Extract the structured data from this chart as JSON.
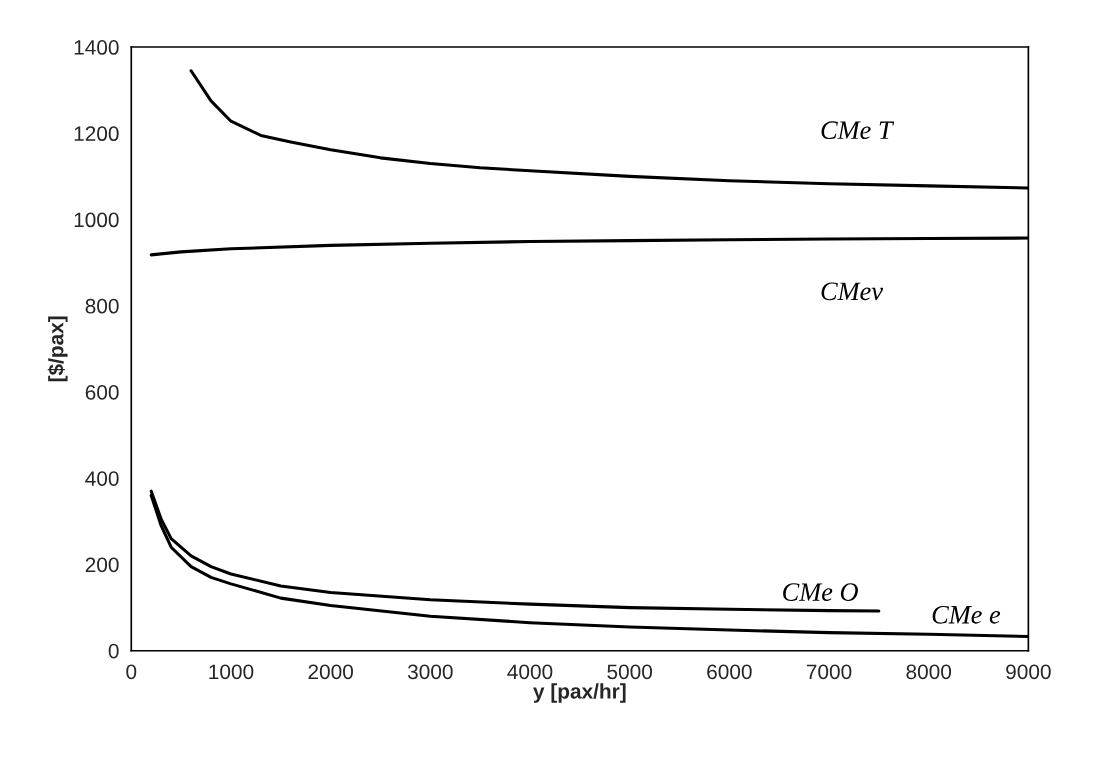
{
  "chart_data": {
    "type": "line",
    "xlabel": "y [pax/hr]",
    "ylabel": "[$/pax]",
    "xlim": [
      0,
      9000
    ],
    "ylim": [
      0,
      1400
    ],
    "xticks": [
      0,
      1000,
      2000,
      3000,
      4000,
      5000,
      6000,
      7000,
      8000,
      9000
    ],
    "yticks": [
      0,
      200,
      400,
      600,
      800,
      1000,
      1200,
      1400
    ],
    "grid": false,
    "legend": false,
    "marker": "none",
    "line_style": "solid",
    "series": [
      {
        "name": "CMe T",
        "color": "#000000",
        "x": [
          600,
          800,
          1000,
          1300,
          1600,
          2000,
          2500,
          3000,
          3500,
          4000,
          5000,
          6000,
          7000,
          8000,
          9000
        ],
        "values": [
          1345,
          1275,
          1228,
          1195,
          1180,
          1162,
          1143,
          1130,
          1120,
          1113,
          1100,
          1090,
          1083,
          1078,
          1073
        ]
      },
      {
        "name": "CMev",
        "color": "#000000",
        "x": [
          200,
          500,
          1000,
          2000,
          3000,
          4000,
          5000,
          6000,
          7000,
          8000,
          9000
        ],
        "values": [
          918,
          925,
          932,
          940,
          945,
          949,
          951,
          953,
          955,
          956,
          957
        ]
      },
      {
        "name": "CMe O",
        "color": "#000000",
        "x": [
          200,
          300,
          400,
          600,
          800,
          1000,
          1500,
          2000,
          3000,
          4000,
          5000,
          6000,
          7000,
          7500
        ],
        "values": [
          370,
          305,
          260,
          220,
          195,
          178,
          150,
          135,
          118,
          108,
          100,
          96,
          93,
          92
        ]
      },
      {
        "name": "CMe e",
        "color": "#000000",
        "x": [
          200,
          300,
          400,
          600,
          800,
          1000,
          1500,
          2000,
          3000,
          4000,
          5000,
          6000,
          7000,
          8000,
          9000
        ],
        "values": [
          360,
          290,
          240,
          195,
          170,
          155,
          122,
          105,
          80,
          65,
          55,
          48,
          42,
          38,
          33
        ]
      }
    ]
  }
}
